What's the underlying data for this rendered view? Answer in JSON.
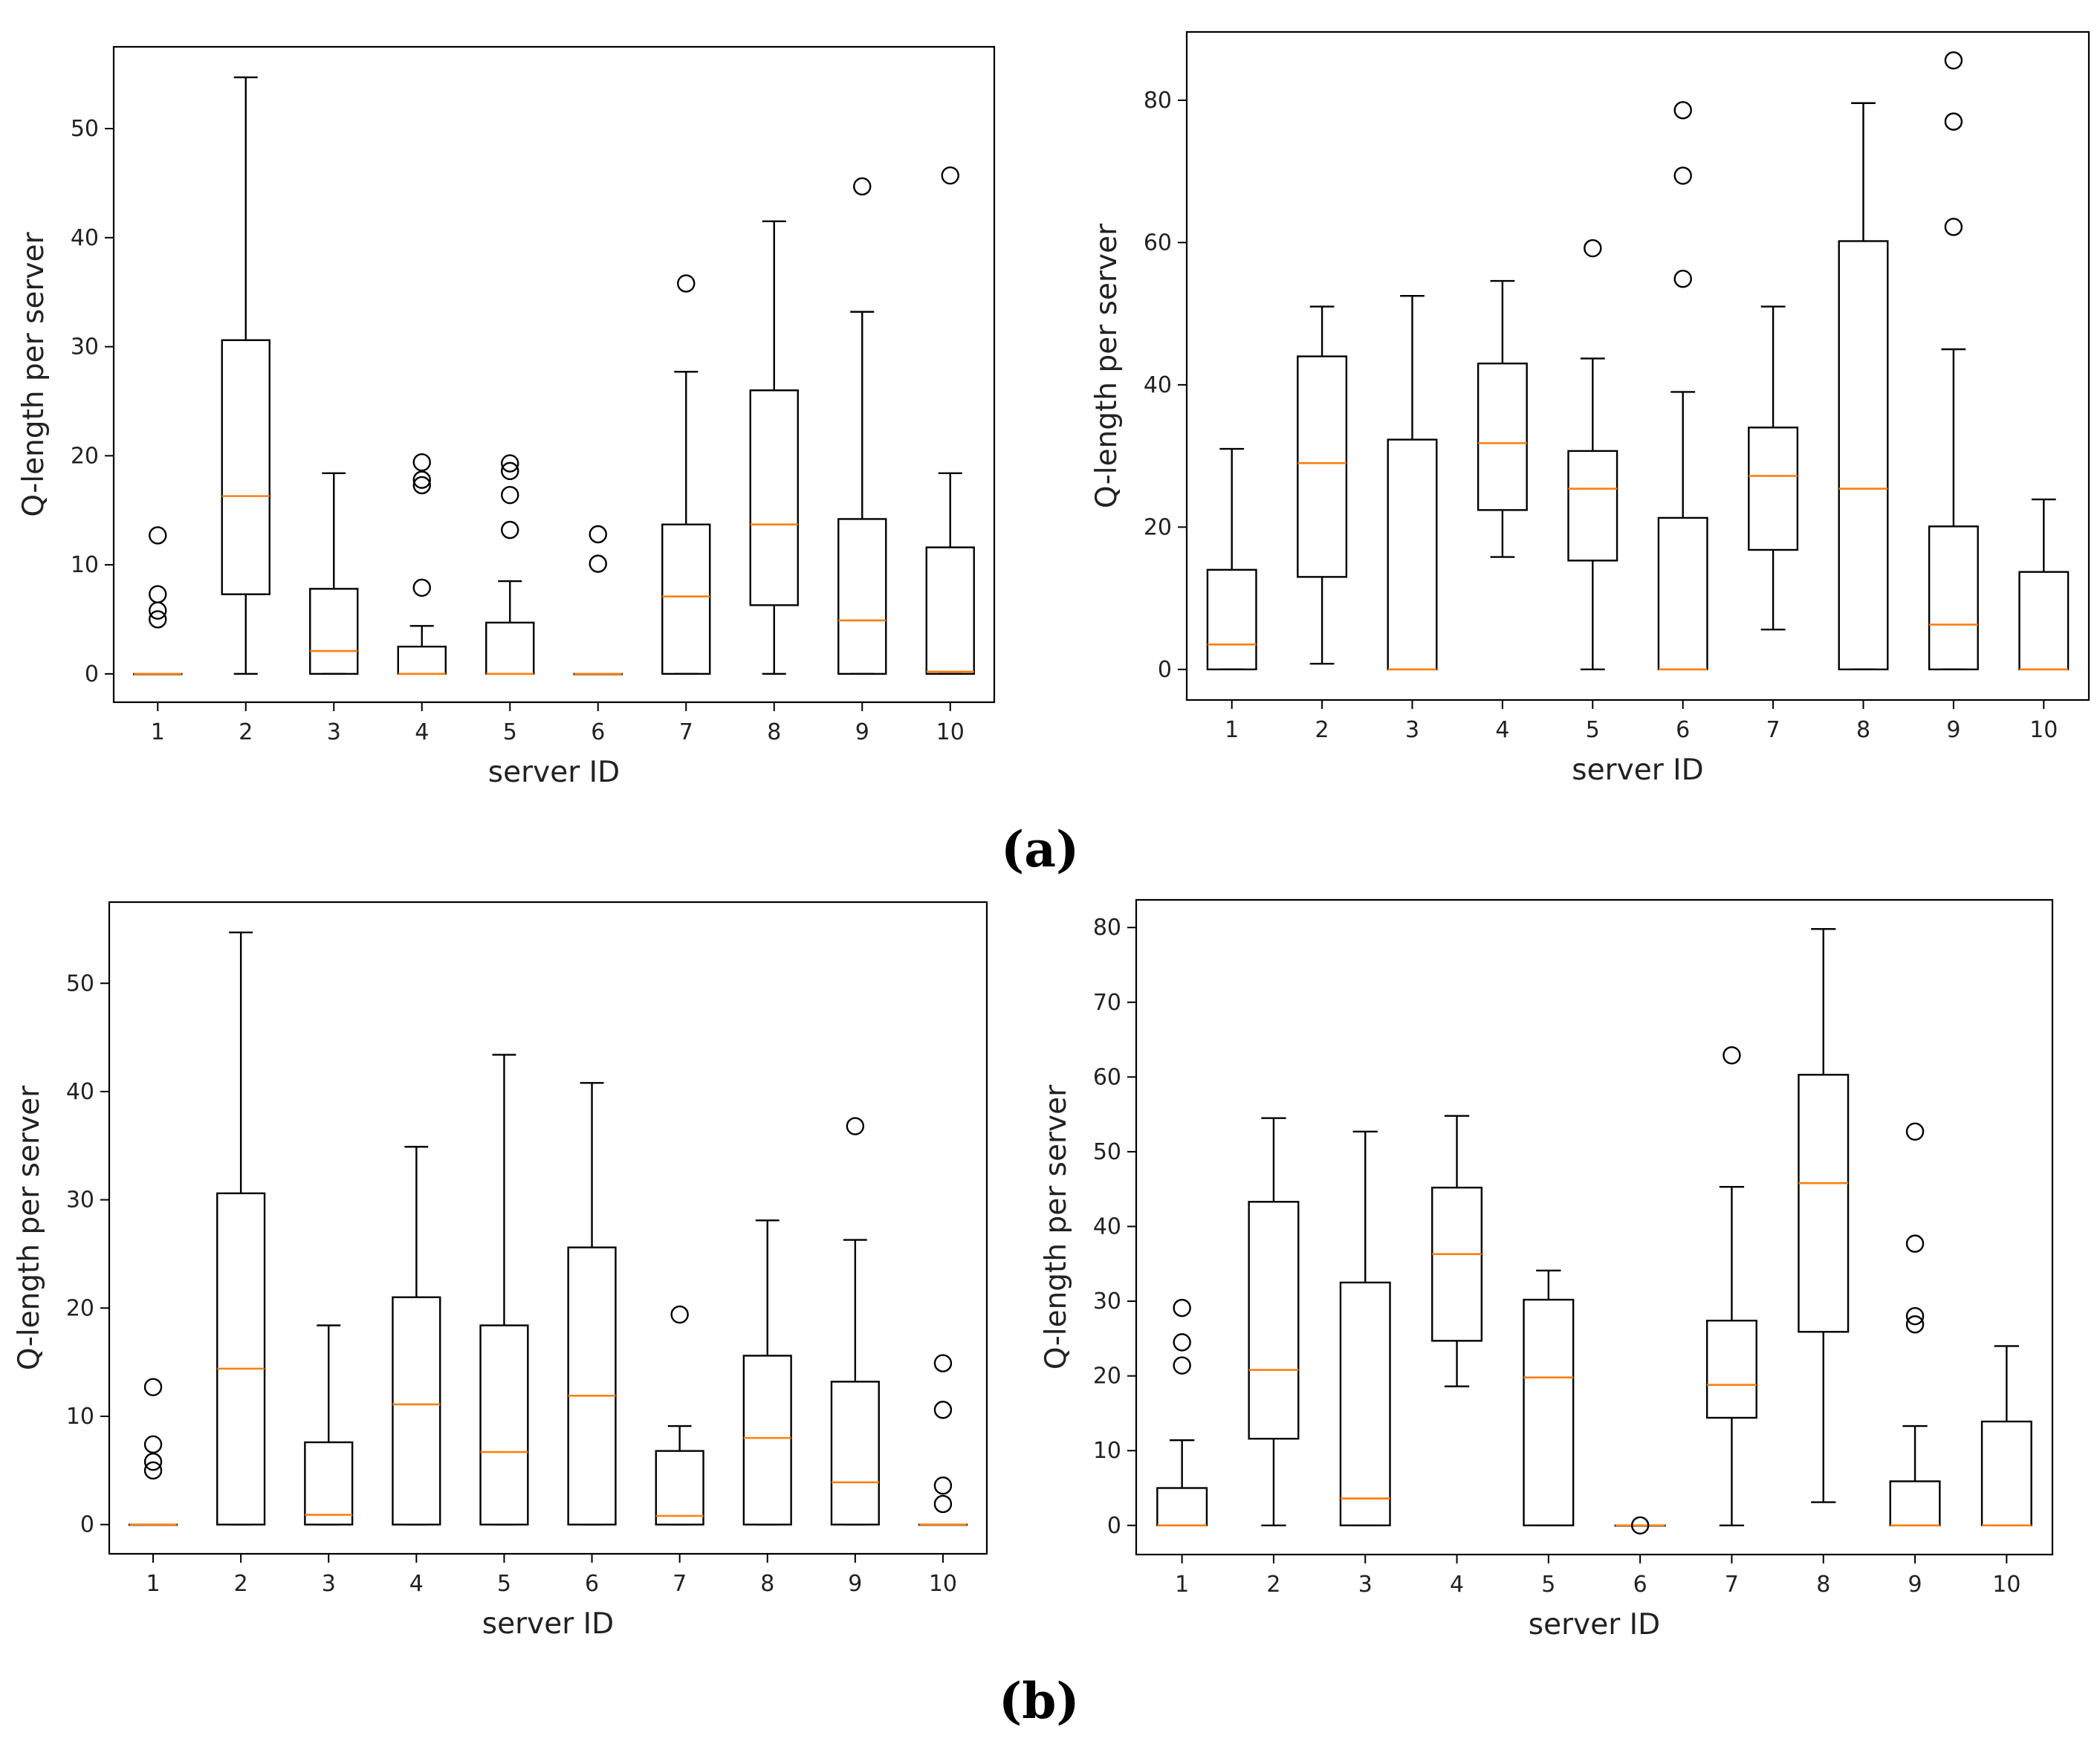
{
  "captions": {
    "a": "(a)",
    "b": "(b)"
  },
  "colors": {
    "box": "#000000",
    "median": "#ff7f0e",
    "frame": "#000000"
  },
  "chart_data": [
    {
      "id": "a-left",
      "type": "boxplot",
      "xlabel": "server ID",
      "ylabel": "Q-length per server",
      "categories": [
        "1",
        "2",
        "3",
        "4",
        "5",
        "6",
        "7",
        "8",
        "9",
        "10"
      ],
      "ylim": [
        -2.6,
        57.5
      ],
      "yticks": [
        0,
        10,
        20,
        30,
        40,
        50
      ],
      "boxes": [
        {
          "whislo": 0,
          "q1": 0,
          "med": 0,
          "q3": 0,
          "whishi": 0,
          "fliers": [
            5,
            5.8,
            7.3,
            12.7
          ]
        },
        {
          "whislo": 0,
          "q1": 7.3,
          "med": 16.3,
          "q3": 30.6,
          "whishi": 54.7,
          "fliers": []
        },
        {
          "whislo": 0,
          "q1": 0,
          "med": 2.1,
          "q3": 7.8,
          "whishi": 18.4,
          "fliers": []
        },
        {
          "whislo": 0,
          "q1": 0,
          "med": 0,
          "q3": 2.5,
          "whishi": 4.4,
          "fliers": [
            7.9,
            17.3,
            17.8,
            19.4
          ]
        },
        {
          "whislo": 0,
          "q1": 0,
          "med": 0,
          "q3": 4.7,
          "whishi": 8.5,
          "fliers": [
            13.2,
            16.4,
            18.6,
            19.3
          ]
        },
        {
          "whislo": 0,
          "q1": 0,
          "med": 0,
          "q3": 0,
          "whishi": 0,
          "fliers": [
            10.1,
            12.8
          ]
        },
        {
          "whislo": 0,
          "q1": 0,
          "med": 7.1,
          "q3": 13.7,
          "whishi": 27.7,
          "fliers": [
            35.8
          ]
        },
        {
          "whislo": 0,
          "q1": 6.3,
          "med": 13.7,
          "q3": 26,
          "whishi": 41.5,
          "fliers": []
        },
        {
          "whislo": 0,
          "q1": 0,
          "med": 4.9,
          "q3": 14.2,
          "whishi": 33.2,
          "fliers": [
            44.7
          ]
        },
        {
          "whislo": 0,
          "q1": 0,
          "med": 0.2,
          "q3": 11.6,
          "whishi": 18.4,
          "fliers": [
            45.7
          ]
        }
      ]
    },
    {
      "id": "a-right",
      "type": "boxplot",
      "xlabel": "server ID",
      "ylabel": "Q-length per server",
      "categories": [
        "1",
        "2",
        "3",
        "4",
        "5",
        "6",
        "7",
        "8",
        "9",
        "10"
      ],
      "ylim": [
        -4.3,
        89.6
      ],
      "yticks": [
        0,
        20,
        40,
        60,
        80
      ],
      "boxes": [
        {
          "whislo": 0,
          "q1": 0,
          "med": 3.5,
          "q3": 14,
          "whishi": 31,
          "fliers": []
        },
        {
          "whislo": 0.8,
          "q1": 13,
          "med": 29,
          "q3": 44,
          "whishi": 51,
          "fliers": []
        },
        {
          "whislo": 0,
          "q1": 0,
          "med": 0,
          "q3": 32.3,
          "whishi": 52.5,
          "fliers": []
        },
        {
          "whislo": 15.8,
          "q1": 22.4,
          "med": 31.8,
          "q3": 43,
          "whishi": 54.6,
          "fliers": []
        },
        {
          "whislo": 0,
          "q1": 15.3,
          "med": 25.4,
          "q3": 30.7,
          "whishi": 43.7,
          "fliers": [
            59.2
          ]
        },
        {
          "whislo": 0,
          "q1": 0,
          "med": 0,
          "q3": 21.3,
          "whishi": 39,
          "fliers": [
            54.9,
            69.4,
            78.6
          ]
        },
        {
          "whislo": 5.6,
          "q1": 16.8,
          "med": 27.2,
          "q3": 34,
          "whishi": 51,
          "fliers": []
        },
        {
          "whislo": 0,
          "q1": 0,
          "med": 25.4,
          "q3": 60.2,
          "whishi": 79.6,
          "fliers": []
        },
        {
          "whislo": 0,
          "q1": 0,
          "med": 6.3,
          "q3": 20.1,
          "whishi": 45,
          "fliers": [
            62.2,
            77,
            85.6
          ]
        },
        {
          "whislo": 0,
          "q1": 0,
          "med": 0,
          "q3": 13.7,
          "whishi": 23.9,
          "fliers": []
        }
      ]
    },
    {
      "id": "b-left",
      "type": "boxplot",
      "xlabel": "server ID",
      "ylabel": "Q-length per server",
      "categories": [
        "1",
        "2",
        "3",
        "4",
        "5",
        "6",
        "7",
        "8",
        "9",
        "10"
      ],
      "ylim": [
        -2.7,
        57.5
      ],
      "yticks": [
        0,
        10,
        20,
        30,
        40,
        50
      ],
      "boxes": [
        {
          "whislo": 0,
          "q1": 0,
          "med": 0,
          "q3": 0,
          "whishi": 0,
          "fliers": [
            5,
            5.8,
            7.4,
            12.7
          ]
        },
        {
          "whislo": 0,
          "q1": 0,
          "med": 14.4,
          "q3": 30.6,
          "whishi": 54.7,
          "fliers": []
        },
        {
          "whislo": 0,
          "q1": 0,
          "med": 0.9,
          "q3": 7.6,
          "whishi": 18.4,
          "fliers": []
        },
        {
          "whislo": 0,
          "q1": 0,
          "med": 11.1,
          "q3": 21,
          "whishi": 34.9,
          "fliers": []
        },
        {
          "whislo": 0,
          "q1": 0,
          "med": 6.7,
          "q3": 18.4,
          "whishi": 43.4,
          "fliers": []
        },
        {
          "whislo": 0,
          "q1": 0,
          "med": 11.9,
          "q3": 25.6,
          "whishi": 40.8,
          "fliers": []
        },
        {
          "whislo": 0,
          "q1": 0,
          "med": 0.8,
          "q3": 6.8,
          "whishi": 9.1,
          "fliers": [
            19.4
          ]
        },
        {
          "whislo": 0,
          "q1": 0,
          "med": 8,
          "q3": 15.6,
          "whishi": 28.1,
          "fliers": []
        },
        {
          "whislo": 0,
          "q1": 0,
          "med": 3.9,
          "q3": 13.2,
          "whishi": 26.3,
          "fliers": [
            36.8
          ]
        },
        {
          "whislo": 0,
          "q1": 0,
          "med": 0,
          "q3": 0,
          "whishi": 0,
          "fliers": [
            1.9,
            3.6,
            10.6,
            14.9
          ]
        }
      ]
    },
    {
      "id": "b-right",
      "type": "boxplot",
      "xlabel": "server ID",
      "ylabel": "Q-length per server",
      "categories": [
        "1",
        "2",
        "3",
        "4",
        "5",
        "6",
        "7",
        "8",
        "9",
        "10"
      ],
      "ylim": [
        -3.9,
        83.7
      ],
      "yticks": [
        0,
        10,
        20,
        30,
        40,
        50,
        60,
        70,
        80
      ],
      "boxes": [
        {
          "whislo": 0,
          "q1": 0,
          "med": 0,
          "q3": 5,
          "whishi": 11.4,
          "fliers": [
            21.4,
            24.5,
            29.1
          ]
        },
        {
          "whislo": 0,
          "q1": 11.6,
          "med": 20.8,
          "q3": 43.3,
          "whishi": 54.5,
          "fliers": []
        },
        {
          "whislo": 0,
          "q1": 0,
          "med": 3.6,
          "q3": 32.5,
          "whishi": 52.7,
          "fliers": []
        },
        {
          "whislo": 18.6,
          "q1": 24.7,
          "med": 36.3,
          "q3": 45.2,
          "whishi": 54.8,
          "fliers": []
        },
        {
          "whislo": 0,
          "q1": 0,
          "med": 19.8,
          "q3": 30.2,
          "whishi": 34.1,
          "fliers": []
        },
        {
          "whislo": 0,
          "q1": 0,
          "med": 0,
          "q3": 0,
          "whishi": 0,
          "fliers": [
            0
          ]
        },
        {
          "whislo": 0,
          "q1": 14.4,
          "med": 18.8,
          "q3": 27.4,
          "whishi": 45.3,
          "fliers": [
            62.9
          ]
        },
        {
          "whislo": 3.1,
          "q1": 25.9,
          "med": 45.8,
          "q3": 60.3,
          "whishi": 79.8,
          "fliers": []
        },
        {
          "whislo": 0,
          "q1": 0,
          "med": 0,
          "q3": 5.9,
          "whishi": 13.3,
          "fliers": [
            26.9,
            28,
            37.7,
            52.7
          ]
        },
        {
          "whislo": 0,
          "q1": 0,
          "med": 0,
          "q3": 13.9,
          "whishi": 24,
          "fliers": []
        }
      ]
    }
  ]
}
